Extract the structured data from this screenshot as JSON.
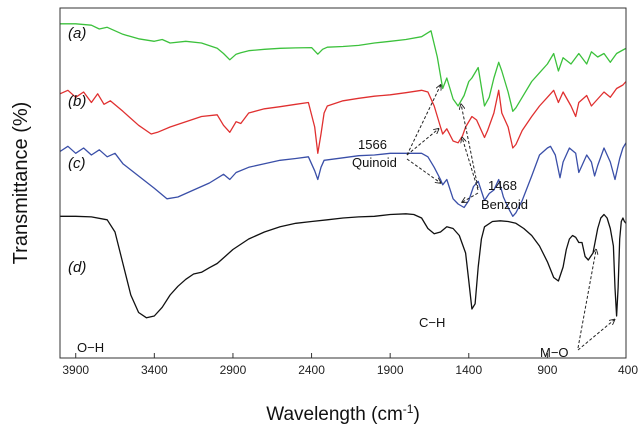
{
  "chart_data": {
    "type": "line",
    "xlabel_main": "Wavelength (cm",
    "xlabel_sup": "-1",
    "xlabel_close": ")",
    "ylabel": "Transmittance (%)",
    "xlim": [
      4000,
      400
    ],
    "x_reversed": true,
    "ylim": [
      0,
      1
    ],
    "grid": false,
    "xticks": [
      3900,
      3400,
      2900,
      2400,
      1900,
      1400,
      900,
      400
    ],
    "series": [
      {
        "name": "(a)",
        "color": "#3cc13c",
        "points": [
          [
            4000,
            0.955
          ],
          [
            3900,
            0.955
          ],
          [
            3800,
            0.951
          ],
          [
            3750,
            0.94
          ],
          [
            3700,
            0.945
          ],
          [
            3600,
            0.925
          ],
          [
            3500,
            0.912
          ],
          [
            3400,
            0.905
          ],
          [
            3350,
            0.91
          ],
          [
            3300,
            0.9
          ],
          [
            3200,
            0.905
          ],
          [
            3100,
            0.9
          ],
          [
            3000,
            0.885
          ],
          [
            2960,
            0.87
          ],
          [
            2920,
            0.852
          ],
          [
            2880,
            0.868
          ],
          [
            2850,
            0.872
          ],
          [
            2800,
            0.878
          ],
          [
            2700,
            0.882
          ],
          [
            2600,
            0.885
          ],
          [
            2500,
            0.886
          ],
          [
            2400,
            0.887
          ],
          [
            2360,
            0.868
          ],
          [
            2330,
            0.882
          ],
          [
            2300,
            0.888
          ],
          [
            2200,
            0.89
          ],
          [
            2100,
            0.893
          ],
          [
            2000,
            0.9
          ],
          [
            1900,
            0.905
          ],
          [
            1800,
            0.91
          ],
          [
            1700,
            0.918
          ],
          [
            1640,
            0.935
          ],
          [
            1600,
            0.86
          ],
          [
            1566,
            0.77
          ],
          [
            1540,
            0.8
          ],
          [
            1500,
            0.74
          ],
          [
            1468,
            0.72
          ],
          [
            1430,
            0.75
          ],
          [
            1400,
            0.79
          ],
          [
            1380,
            0.8
          ],
          [
            1340,
            0.83
          ],
          [
            1300,
            0.72
          ],
          [
            1270,
            0.745
          ],
          [
            1240,
            0.8
          ],
          [
            1210,
            0.845
          ],
          [
            1190,
            0.82
          ],
          [
            1150,
            0.76
          ],
          [
            1120,
            0.705
          ],
          [
            1100,
            0.715
          ],
          [
            1060,
            0.745
          ],
          [
            1000,
            0.79
          ],
          [
            950,
            0.815
          ],
          [
            900,
            0.84
          ],
          [
            860,
            0.87
          ],
          [
            830,
            0.82
          ],
          [
            800,
            0.858
          ],
          [
            750,
            0.84
          ],
          [
            700,
            0.87
          ],
          [
            650,
            0.84
          ],
          [
            620,
            0.875
          ],
          [
            580,
            0.86
          ],
          [
            540,
            0.87
          ],
          [
            500,
            0.845
          ],
          [
            460,
            0.87
          ],
          [
            420,
            0.88
          ],
          [
            400,
            0.885
          ]
        ]
      },
      {
        "name": "(b)",
        "color": "#e03030",
        "points": [
          [
            4000,
            0.755
          ],
          [
            3950,
            0.765
          ],
          [
            3900,
            0.745
          ],
          [
            3850,
            0.76
          ],
          [
            3800,
            0.73
          ],
          [
            3760,
            0.755
          ],
          [
            3720,
            0.725
          ],
          [
            3680,
            0.735
          ],
          [
            3600,
            0.705
          ],
          [
            3500,
            0.665
          ],
          [
            3420,
            0.64
          ],
          [
            3380,
            0.645
          ],
          [
            3300,
            0.66
          ],
          [
            3200,
            0.675
          ],
          [
            3100,
            0.69
          ],
          [
            3000,
            0.695
          ],
          [
            2960,
            0.665
          ],
          [
            2920,
            0.645
          ],
          [
            2880,
            0.675
          ],
          [
            2850,
            0.67
          ],
          [
            2800,
            0.7
          ],
          [
            2700,
            0.712
          ],
          [
            2600,
            0.718
          ],
          [
            2500,
            0.725
          ],
          [
            2420,
            0.73
          ],
          [
            2380,
            0.66
          ],
          [
            2360,
            0.585
          ],
          [
            2340,
            0.64
          ],
          [
            2320,
            0.7
          ],
          [
            2300,
            0.72
          ],
          [
            2200,
            0.735
          ],
          [
            2100,
            0.742
          ],
          [
            2000,
            0.748
          ],
          [
            1900,
            0.752
          ],
          [
            1800,
            0.758
          ],
          [
            1700,
            0.765
          ],
          [
            1660,
            0.76
          ],
          [
            1620,
            0.72
          ],
          [
            1580,
            0.66
          ],
          [
            1566,
            0.64
          ],
          [
            1540,
            0.655
          ],
          [
            1500,
            0.62
          ],
          [
            1468,
            0.615
          ],
          [
            1440,
            0.635
          ],
          [
            1420,
            0.66
          ],
          [
            1380,
            0.69
          ],
          [
            1350,
            0.68
          ],
          [
            1300,
            0.63
          ],
          [
            1280,
            0.65
          ],
          [
            1240,
            0.7
          ],
          [
            1210,
            0.765
          ],
          [
            1190,
            0.7
          ],
          [
            1150,
            0.66
          ],
          [
            1120,
            0.6
          ],
          [
            1100,
            0.61
          ],
          [
            1060,
            0.65
          ],
          [
            1000,
            0.69
          ],
          [
            950,
            0.72
          ],
          [
            900,
            0.745
          ],
          [
            860,
            0.765
          ],
          [
            830,
            0.73
          ],
          [
            800,
            0.76
          ],
          [
            750,
            0.72
          ],
          [
            720,
            0.69
          ],
          [
            700,
            0.73
          ],
          [
            650,
            0.75
          ],
          [
            620,
            0.72
          ],
          [
            580,
            0.74
          ],
          [
            540,
            0.76
          ],
          [
            500,
            0.745
          ],
          [
            460,
            0.77
          ],
          [
            420,
            0.78
          ],
          [
            400,
            0.79
          ]
        ]
      },
      {
        "name": "(c)",
        "color": "#3a4fa8",
        "points": [
          [
            4000,
            0.59
          ],
          [
            3950,
            0.605
          ],
          [
            3900,
            0.585
          ],
          [
            3850,
            0.6
          ],
          [
            3800,
            0.58
          ],
          [
            3750,
            0.595
          ],
          [
            3700,
            0.575
          ],
          [
            3650,
            0.585
          ],
          [
            3600,
            0.555
          ],
          [
            3500,
            0.52
          ],
          [
            3400,
            0.485
          ],
          [
            3320,
            0.455
          ],
          [
            3250,
            0.46
          ],
          [
            3150,
            0.48
          ],
          [
            3050,
            0.5
          ],
          [
            2960,
            0.525
          ],
          [
            2920,
            0.51
          ],
          [
            2880,
            0.53
          ],
          [
            2800,
            0.545
          ],
          [
            2700,
            0.555
          ],
          [
            2600,
            0.565
          ],
          [
            2500,
            0.57
          ],
          [
            2420,
            0.575
          ],
          [
            2380,
            0.535
          ],
          [
            2360,
            0.51
          ],
          [
            2340,
            0.545
          ],
          [
            2320,
            0.565
          ],
          [
            2200,
            0.572
          ],
          [
            2100,
            0.578
          ],
          [
            2000,
            0.58
          ],
          [
            1900,
            0.585
          ],
          [
            1800,
            0.585
          ],
          [
            1700,
            0.585
          ],
          [
            1660,
            0.575
          ],
          [
            1620,
            0.545
          ],
          [
            1580,
            0.51
          ],
          [
            1566,
            0.495
          ],
          [
            1540,
            0.51
          ],
          [
            1500,
            0.455
          ],
          [
            1468,
            0.44
          ],
          [
            1430,
            0.43
          ],
          [
            1400,
            0.45
          ],
          [
            1370,
            0.49
          ],
          [
            1340,
            0.505
          ],
          [
            1300,
            0.45
          ],
          [
            1270,
            0.47
          ],
          [
            1240,
            0.48
          ],
          [
            1210,
            0.51
          ],
          [
            1180,
            0.46
          ],
          [
            1150,
            0.43
          ],
          [
            1120,
            0.405
          ],
          [
            1100,
            0.415
          ],
          [
            1060,
            0.45
          ],
          [
            1000,
            0.52
          ],
          [
            950,
            0.58
          ],
          [
            900,
            0.6
          ],
          [
            880,
            0.605
          ],
          [
            850,
            0.58
          ],
          [
            820,
            0.515
          ],
          [
            800,
            0.56
          ],
          [
            760,
            0.6
          ],
          [
            720,
            0.585
          ],
          [
            700,
            0.53
          ],
          [
            680,
            0.55
          ],
          [
            650,
            0.58
          ],
          [
            620,
            0.56
          ],
          [
            600,
            0.52
          ],
          [
            580,
            0.55
          ],
          [
            540,
            0.6
          ],
          [
            500,
            0.56
          ],
          [
            470,
            0.51
          ],
          [
            440,
            0.57
          ],
          [
            420,
            0.6
          ],
          [
            400,
            0.615
          ]
        ]
      },
      {
        "name": "(d)",
        "color": "#111111",
        "points": [
          [
            4000,
            0.405
          ],
          [
            3900,
            0.405
          ],
          [
            3800,
            0.403
          ],
          [
            3700,
            0.395
          ],
          [
            3650,
            0.36
          ],
          [
            3600,
            0.27
          ],
          [
            3550,
            0.18
          ],
          [
            3500,
            0.13
          ],
          [
            3450,
            0.115
          ],
          [
            3400,
            0.12
          ],
          [
            3350,
            0.145
          ],
          [
            3300,
            0.18
          ],
          [
            3250,
            0.205
          ],
          [
            3200,
            0.225
          ],
          [
            3150,
            0.24
          ],
          [
            3100,
            0.245
          ],
          [
            3050,
            0.258
          ],
          [
            3000,
            0.27
          ],
          [
            2950,
            0.29
          ],
          [
            2900,
            0.31
          ],
          [
            2800,
            0.34
          ],
          [
            2700,
            0.36
          ],
          [
            2600,
            0.375
          ],
          [
            2500,
            0.385
          ],
          [
            2400,
            0.39
          ],
          [
            2300,
            0.395
          ],
          [
            2200,
            0.4
          ],
          [
            2100,
            0.403
          ],
          [
            2000,
            0.405
          ],
          [
            1900,
            0.41
          ],
          [
            1800,
            0.412
          ],
          [
            1750,
            0.41
          ],
          [
            1700,
            0.4
          ],
          [
            1660,
            0.37
          ],
          [
            1620,
            0.355
          ],
          [
            1580,
            0.36
          ],
          [
            1540,
            0.375
          ],
          [
            1500,
            0.37
          ],
          [
            1460,
            0.35
          ],
          [
            1420,
            0.3
          ],
          [
            1400,
            0.22
          ],
          [
            1380,
            0.14
          ],
          [
            1360,
            0.155
          ],
          [
            1340,
            0.26
          ],
          [
            1320,
            0.34
          ],
          [
            1300,
            0.375
          ],
          [
            1250,
            0.39
          ],
          [
            1200,
            0.392
          ],
          [
            1150,
            0.39
          ],
          [
            1100,
            0.385
          ],
          [
            1050,
            0.37
          ],
          [
            1000,
            0.35
          ],
          [
            950,
            0.32
          ],
          [
            900,
            0.275
          ],
          [
            860,
            0.23
          ],
          [
            830,
            0.22
          ],
          [
            800,
            0.26
          ],
          [
            780,
            0.31
          ],
          [
            760,
            0.34
          ],
          [
            740,
            0.35
          ],
          [
            720,
            0.345
          ],
          [
            700,
            0.33
          ],
          [
            680,
            0.33
          ],
          [
            660,
            0.29
          ],
          [
            640,
            0.28
          ],
          [
            610,
            0.3
          ],
          [
            580,
            0.37
          ],
          [
            560,
            0.4
          ],
          [
            540,
            0.41
          ],
          [
            520,
            0.4
          ],
          [
            500,
            0.37
          ],
          [
            480,
            0.32
          ],
          [
            470,
            0.2
          ],
          [
            460,
            0.12
          ],
          [
            450,
            0.2
          ],
          [
            440,
            0.34
          ],
          [
            430,
            0.39
          ],
          [
            420,
            0.4
          ],
          [
            410,
            0.39
          ],
          [
            400,
            0.385
          ]
        ]
      }
    ],
    "panel_labels": [
      "(a)",
      "(b)",
      "(c)",
      "(d)"
    ],
    "annotations": [
      {
        "id": "quinoid-value",
        "text": "1566"
      },
      {
        "id": "quinoid-name",
        "text": "Quinoid"
      },
      {
        "id": "benzoid-value",
        "text": "1468"
      },
      {
        "id": "benzoid-name",
        "text": "Benzoid"
      },
      {
        "id": "oh-label",
        "text": "O−H"
      },
      {
        "id": "ch-label",
        "text": "C−H"
      },
      {
        "id": "mo-label",
        "text": "M−O"
      }
    ]
  }
}
